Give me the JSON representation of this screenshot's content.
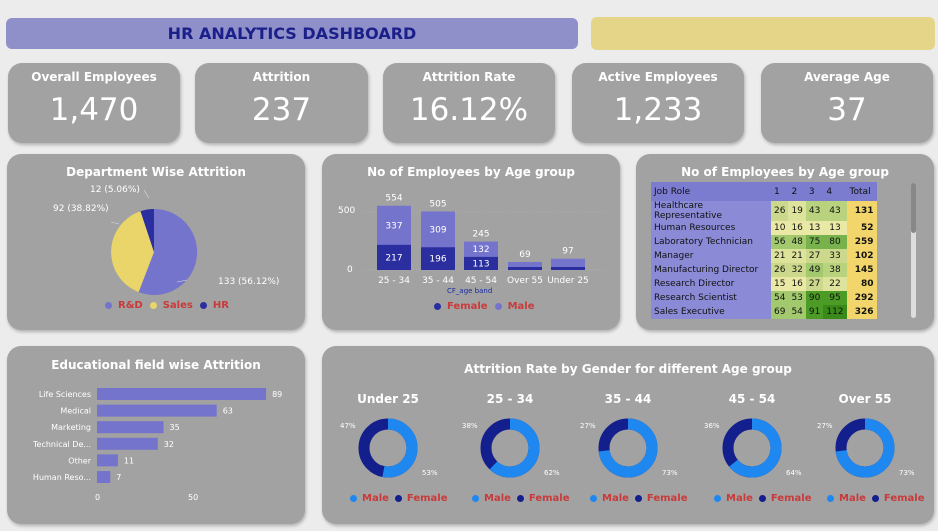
{
  "header": {
    "title": "HR ANALYTICS DASHBOARD"
  },
  "kpis": [
    {
      "label": "Overall Employees",
      "value": "1,470"
    },
    {
      "label": "Attrition",
      "value": "237"
    },
    {
      "label": "Attrition Rate",
      "value": "16.12%"
    },
    {
      "label": "Active Employees",
      "value": "1,233"
    },
    {
      "label": "Average Age",
      "value": "37"
    }
  ],
  "dept_panel": {
    "title": "Department Wise Attrition",
    "labels": [
      "133 (56.12%)",
      "92 (38.82%)",
      "12 (5.06%)"
    ],
    "legend": [
      "R&D",
      "Sales",
      "HR"
    ]
  },
  "age_panel": {
    "title": "No of Employees by Age group",
    "axis_ticks": [
      "500",
      "0"
    ],
    "axis_title": "CF_age band",
    "legend": [
      "Female",
      "Male"
    ]
  },
  "table_panel": {
    "title": "No of Employees by Age group",
    "headers": [
      "Job Role",
      "1",
      "2",
      "3",
      "4",
      "Total"
    ],
    "rows": [
      {
        "role": "Healthcare Representative",
        "v": [
          "26",
          "19",
          "43",
          "43"
        ],
        "total": "131"
      },
      {
        "role": "Human Resources",
        "v": [
          "10",
          "16",
          "13",
          "13"
        ],
        "total": "52"
      },
      {
        "role": "Laboratory Technician",
        "v": [
          "56",
          "48",
          "75",
          "80"
        ],
        "total": "259"
      },
      {
        "role": "Manager",
        "v": [
          "21",
          "21",
          "27",
          "33"
        ],
        "total": "102"
      },
      {
        "role": "Manufacturing Director",
        "v": [
          "26",
          "32",
          "49",
          "38"
        ],
        "total": "145"
      },
      {
        "role": "Research Director",
        "v": [
          "15",
          "16",
          "27",
          "22"
        ],
        "total": "80"
      },
      {
        "role": "Research Scientist",
        "v": [
          "54",
          "53",
          "90",
          "95"
        ],
        "total": "292"
      },
      {
        "role": "Sales Executive",
        "v": [
          "69",
          "54",
          "91",
          "112"
        ],
        "total": "326"
      }
    ]
  },
  "edu_panel": {
    "title": "Educational field wise Attrition",
    "axis_ticks": [
      "0",
      "50"
    ]
  },
  "gender_panel": {
    "title": "Attrition Rate by Gender for different Age group",
    "groups": [
      {
        "title": "Under 25",
        "female_pct": "47%",
        "male_pct": "53%"
      },
      {
        "title": "25 - 34",
        "female_pct": "38%",
        "male_pct": "62%"
      },
      {
        "title": "35 - 44",
        "female_pct": "27%",
        "male_pct": "73%"
      },
      {
        "title": "45 - 54",
        "female_pct": "36%",
        "male_pct": "64%"
      },
      {
        "title": "Over 55",
        "female_pct": "27%",
        "male_pct": "73%"
      }
    ],
    "legend": [
      "Male",
      "Female"
    ]
  },
  "colors": {
    "male": "#1e88f0",
    "female": "#131f8c",
    "rd": "#7474cc",
    "sales": "#ead56b",
    "hr": "#2a2e9e"
  },
  "chart_data": [
    {
      "type": "pie",
      "title": "Department Wise Attrition",
      "categories": [
        "R&D",
        "Sales",
        "HR"
      ],
      "values": [
        133,
        92,
        12
      ]
    },
    {
      "type": "bar",
      "title": "No of Employees by Age group",
      "xlabel": "CF_age band",
      "categories": [
        "25 - 34",
        "35 - 44",
        "45 - 54",
        "Over 55",
        "Under 25"
      ],
      "totals": [
        554,
        505,
        245,
        69,
        97
      ],
      "series": [
        {
          "name": "Female",
          "values": [
            217,
            196,
            113,
            null,
            null
          ]
        },
        {
          "name": "Male",
          "values": [
            337,
            309,
            132,
            null,
            null
          ]
        }
      ],
      "ylim": [
        0,
        560
      ]
    },
    {
      "type": "bar",
      "title": "Educational field wise Attrition",
      "categories": [
        "Life Sciences",
        "Medical",
        "Marketing",
        "Technical De...",
        "Other",
        "Human Reso..."
      ],
      "values": [
        89,
        63,
        35,
        32,
        11,
        7
      ],
      "xlim": [
        0,
        100
      ]
    },
    {
      "type": "pie",
      "title": "Attrition Rate by Gender for different Age group",
      "categories": [
        "Under 25",
        "25 - 34",
        "35 - 44",
        "45 - 54",
        "Over 55"
      ],
      "series": [
        {
          "name": "Male",
          "values": [
            53,
            62,
            73,
            64,
            73
          ]
        },
        {
          "name": "Female",
          "values": [
            47,
            38,
            27,
            36,
            27
          ]
        }
      ]
    }
  ]
}
